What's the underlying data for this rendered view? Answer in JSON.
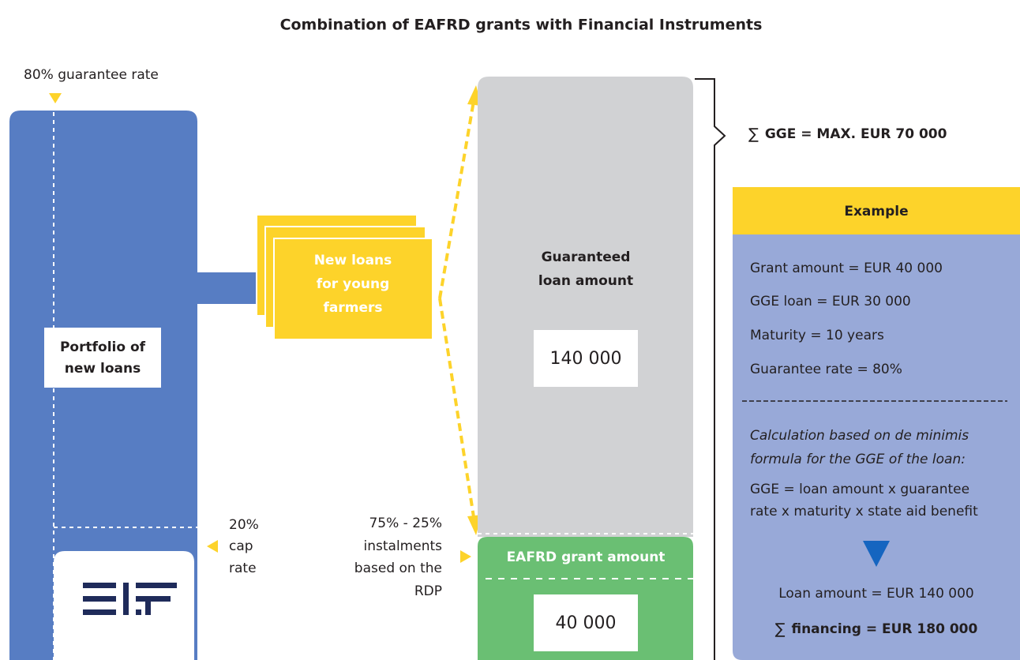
{
  "title": "Combination of EAFRD grants with Financial Instruments",
  "guarantee_rate_label": "80% guarantee rate",
  "portfolio": [
    "Portfolio of",
    "new loans"
  ],
  "cap_rate": [
    "20%",
    "cap",
    "rate"
  ],
  "new_loans": [
    "New loans",
    "for young",
    "farmers"
  ],
  "guaranteed": {
    "label": [
      "Guaranteed",
      "loan amount"
    ],
    "amount": "140 000"
  },
  "grant": {
    "label": "EAFRD grant amount",
    "amount": "40 000"
  },
  "instalments": [
    "75% - 25%",
    "instalments",
    "based on the",
    "RDP"
  ],
  "sum_symbol": "∑",
  "gge_max": "GGE = MAX. EUR 70 000",
  "example": {
    "header": "Example",
    "lines": [
      "Grant amount = EUR 40 000",
      "GGE loan = EUR 30 000",
      "Maturity = 10 years",
      "Guarantee rate = 80%"
    ],
    "calculation": [
      "Calculation based on de minimis",
      "formula for the GGE of the loan:"
    ],
    "formula": [
      "GGE = loan amount x guarantee",
      "rate x maturity x state aid benefit"
    ],
    "loan_amount": "Loan amount = EUR 140 000",
    "financing": "financing = EUR 180 000"
  }
}
